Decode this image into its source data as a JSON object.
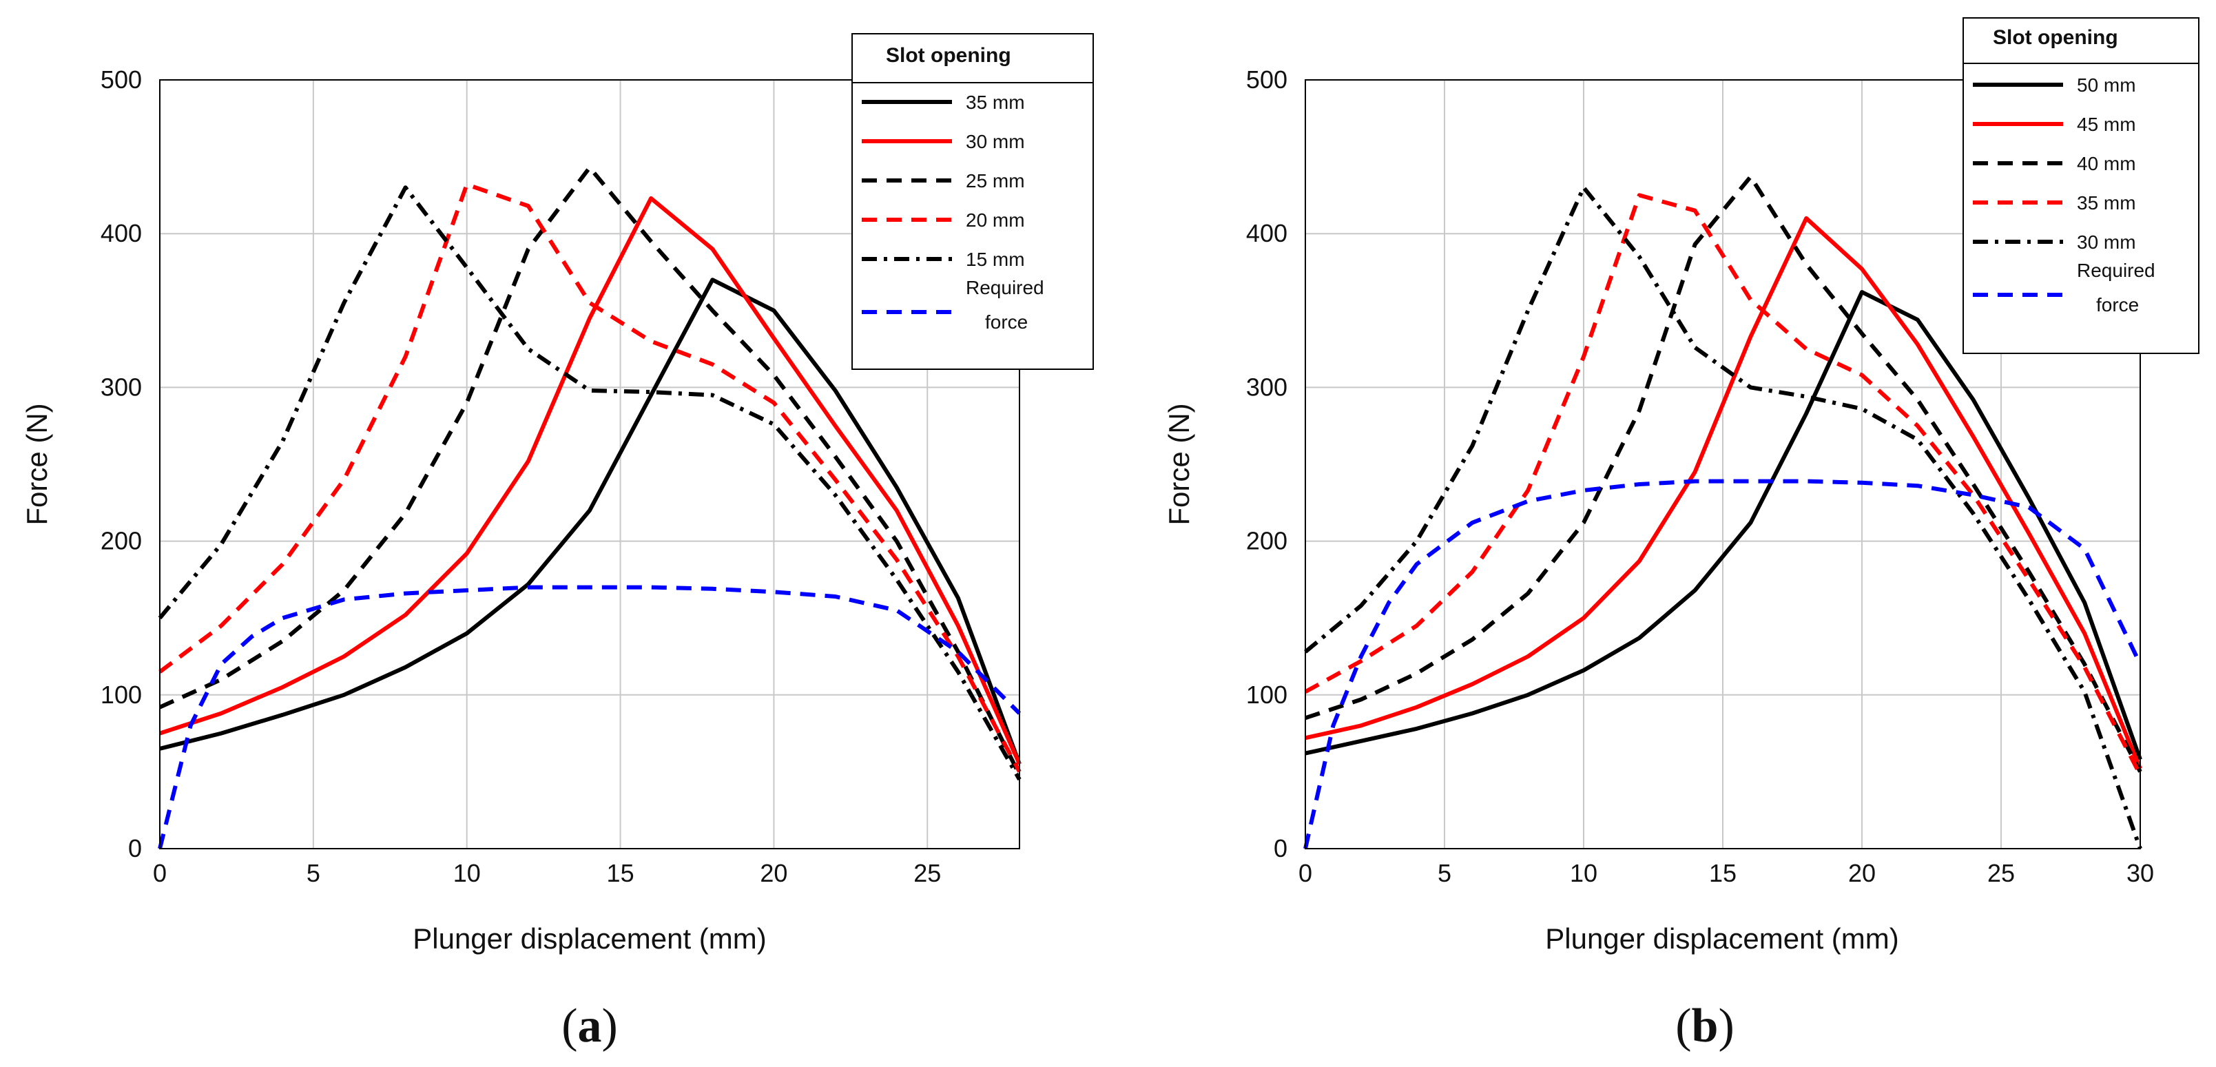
{
  "colors": {
    "black": "#000000",
    "red": "#ff0000",
    "blue": "#0000ff",
    "grid": "#c8c8c8"
  },
  "chart_data": [
    {
      "panel": "a",
      "type": "line",
      "panel_label": {
        "open": "(",
        "letter": "a",
        "close": ")"
      },
      "xlabel": "Plunger displacement (mm)",
      "ylabel": "Force (N)",
      "xlim": [
        0,
        28
      ],
      "ylim": [
        0,
        500
      ],
      "xticks": [
        0,
        5,
        10,
        15,
        20,
        25
      ],
      "yticks": [
        0,
        100,
        200,
        300,
        400,
        500
      ],
      "grid": true,
      "legend": {
        "title": "Slot opening",
        "placement": "top-right"
      },
      "series": [
        {
          "name": "35 mm",
          "color": "black",
          "dash": "solid",
          "x": [
            0,
            2,
            4,
            6,
            8,
            10,
            12,
            14,
            16,
            18,
            20,
            22,
            24,
            26,
            28
          ],
          "y": [
            65,
            75,
            87,
            100,
            118,
            140,
            172,
            220,
            295,
            370,
            350,
            298,
            235,
            163,
            55
          ]
        },
        {
          "name": "30 mm",
          "color": "red",
          "dash": "solid",
          "x": [
            0,
            2,
            4,
            6,
            8,
            10,
            12,
            14,
            16,
            18,
            20,
            22,
            24,
            26,
            28
          ],
          "y": [
            75,
            88,
            105,
            125,
            152,
            192,
            252,
            345,
            423,
            390,
            332,
            275,
            220,
            145,
            55
          ]
        },
        {
          "name": "25 mm",
          "color": "black",
          "dash": "dash",
          "x": [
            0,
            2,
            4,
            6,
            8,
            10,
            12,
            14,
            16,
            18,
            20,
            22,
            24,
            26,
            28
          ],
          "y": [
            92,
            110,
            135,
            168,
            218,
            290,
            390,
            443,
            395,
            350,
            308,
            255,
            200,
            128,
            48
          ]
        },
        {
          "name": "20 mm",
          "color": "red",
          "dash": "dash",
          "x": [
            0,
            2,
            4,
            6,
            8,
            10,
            12,
            14,
            16,
            18,
            20,
            22,
            24,
            26,
            28
          ],
          "y": [
            115,
            145,
            185,
            240,
            320,
            432,
            418,
            355,
            330,
            315,
            290,
            240,
            188,
            125,
            50
          ]
        },
        {
          "name": "15 mm",
          "color": "black",
          "dash": "dashdot",
          "x": [
            0,
            2,
            4,
            6,
            8,
            10,
            12,
            14,
            16,
            18,
            20,
            22,
            24,
            26,
            28
          ],
          "y": [
            150,
            198,
            265,
            355,
            430,
            378,
            325,
            298,
            297,
            295,
            276,
            230,
            175,
            115,
            45
          ]
        },
        {
          "name": "Required force",
          "color": "blue",
          "dash": "dash",
          "x": [
            0,
            1,
            2,
            3,
            4,
            6,
            8,
            10,
            12,
            14,
            16,
            18,
            20,
            22,
            24,
            26,
            28
          ],
          "y": [
            0,
            80,
            120,
            138,
            150,
            162,
            166,
            168,
            170,
            170,
            170,
            169,
            167,
            164,
            155,
            128,
            88
          ]
        }
      ]
    },
    {
      "panel": "b",
      "type": "line",
      "panel_label": {
        "open": "(",
        "letter": "b",
        "close": ")"
      },
      "xlabel": "Plunger displacement (mm)",
      "ylabel": "Force (N)",
      "xlim": [
        0,
        30
      ],
      "ylim": [
        0,
        500
      ],
      "xticks": [
        0,
        5,
        10,
        15,
        20,
        25,
        30
      ],
      "yticks": [
        0,
        100,
        200,
        300,
        400,
        500
      ],
      "grid": true,
      "legend": {
        "title": "Slot opening",
        "placement": "top-right"
      },
      "series": [
        {
          "name": "50 mm",
          "color": "black",
          "dash": "solid",
          "x": [
            0,
            2,
            4,
            6,
            8,
            10,
            12,
            14,
            16,
            18,
            20,
            22,
            24,
            26,
            28,
            30
          ],
          "y": [
            62,
            70,
            78,
            88,
            100,
            116,
            137,
            168,
            212,
            283,
            362,
            344,
            292,
            228,
            160,
            58
          ]
        },
        {
          "name": "45 mm",
          "color": "red",
          "dash": "solid",
          "x": [
            0,
            2,
            4,
            6,
            8,
            10,
            12,
            14,
            16,
            18,
            20,
            22,
            24,
            26,
            28,
            30
          ],
          "y": [
            72,
            80,
            92,
            107,
            125,
            150,
            187,
            245,
            333,
            410,
            377,
            328,
            268,
            205,
            140,
            52
          ]
        },
        {
          "name": "40 mm",
          "color": "black",
          "dash": "dash",
          "x": [
            0,
            2,
            4,
            6,
            8,
            10,
            12,
            14,
            16,
            18,
            20,
            22,
            24,
            26,
            28,
            30
          ],
          "y": [
            85,
            97,
            114,
            136,
            166,
            212,
            285,
            393,
            437,
            380,
            335,
            292,
            237,
            180,
            120,
            50
          ]
        },
        {
          "name": "35 mm",
          "color": "red",
          "dash": "dash",
          "x": [
            0,
            2,
            4,
            6,
            8,
            10,
            12,
            14,
            16,
            18,
            20,
            22,
            24,
            26,
            28,
            30
          ],
          "y": [
            102,
            122,
            145,
            180,
            233,
            320,
            425,
            415,
            357,
            325,
            308,
            275,
            230,
            175,
            118,
            48
          ]
        },
        {
          "name": "30 mm",
          "color": "black",
          "dash": "dashdot",
          "x": [
            0,
            2,
            4,
            6,
            8,
            10,
            12,
            14,
            16,
            18,
            20,
            22,
            24,
            26,
            28,
            30
          ],
          "y": [
            128,
            158,
            200,
            262,
            350,
            430,
            385,
            326,
            300,
            294,
            286,
            266,
            218,
            162,
            102,
            0
          ]
        },
        {
          "name": "Required force",
          "color": "blue",
          "dash": "dash",
          "x": [
            0,
            1,
            2,
            3,
            4,
            6,
            8,
            10,
            12,
            14,
            16,
            18,
            20,
            22,
            24,
            26,
            28,
            30
          ],
          "y": [
            0,
            80,
            125,
            160,
            185,
            212,
            226,
            233,
            237,
            239,
            239,
            239,
            238,
            236,
            230,
            222,
            195,
            120
          ]
        }
      ]
    }
  ]
}
